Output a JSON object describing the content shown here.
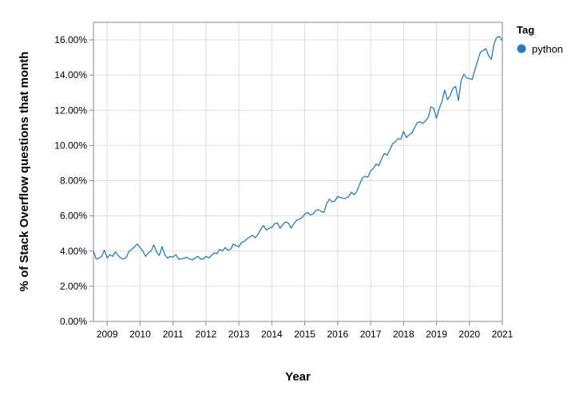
{
  "chart_data": {
    "type": "line",
    "xlabel": "Year",
    "ylabel": "% of Stack Overflow questions that month",
    "xlim": [
      "2008-08",
      "2021-01"
    ],
    "ylim": [
      0,
      17
    ],
    "x_ticks": [
      "2009",
      "2010",
      "2011",
      "2012",
      "2013",
      "2014",
      "2015",
      "2016",
      "2017",
      "2018",
      "2019",
      "2020",
      "2021"
    ],
    "y_ticks": [
      0,
      2,
      4,
      6,
      8,
      10,
      12,
      14,
      16
    ],
    "y_tick_labels": [
      "0.00%",
      "2.00%",
      "4.00%",
      "6.00%",
      "8.00%",
      "10.00%",
      "12.00%",
      "14.00%",
      "16.00%"
    ],
    "grid": true,
    "legend": {
      "title": "Tag",
      "placement": "top-right"
    },
    "colors": {
      "python": "#2c7bb6",
      "grid": "#dddddd",
      "axis": "#888888"
    },
    "series": [
      {
        "name": "python",
        "x": [
          "2008-08",
          "2008-09",
          "2008-10",
          "2008-11",
          "2008-12",
          "2009-01",
          "2009-02",
          "2009-03",
          "2009-04",
          "2009-05",
          "2009-06",
          "2009-07",
          "2009-08",
          "2009-09",
          "2009-10",
          "2009-11",
          "2009-12",
          "2010-01",
          "2010-02",
          "2010-03",
          "2010-04",
          "2010-05",
          "2010-06",
          "2010-07",
          "2010-08",
          "2010-09",
          "2010-10",
          "2010-11",
          "2010-12",
          "2011-01",
          "2011-02",
          "2011-03",
          "2011-04",
          "2011-05",
          "2011-06",
          "2011-07",
          "2011-08",
          "2011-09",
          "2011-10",
          "2011-11",
          "2011-12",
          "2012-01",
          "2012-02",
          "2012-03",
          "2012-04",
          "2012-05",
          "2012-06",
          "2012-07",
          "2012-08",
          "2012-09",
          "2012-10",
          "2012-11",
          "2012-12",
          "2013-01",
          "2013-02",
          "2013-03",
          "2013-04",
          "2013-05",
          "2013-06",
          "2013-07",
          "2013-08",
          "2013-09",
          "2013-10",
          "2013-11",
          "2013-12",
          "2014-01",
          "2014-02",
          "2014-03",
          "2014-04",
          "2014-05",
          "2014-06",
          "2014-07",
          "2014-08",
          "2014-09",
          "2014-10",
          "2014-11",
          "2014-12",
          "2015-01",
          "2015-02",
          "2015-03",
          "2015-04",
          "2015-05",
          "2015-06",
          "2015-07",
          "2015-08",
          "2015-09",
          "2015-10",
          "2015-11",
          "2015-12",
          "2016-01",
          "2016-02",
          "2016-03",
          "2016-04",
          "2016-05",
          "2016-06",
          "2016-07",
          "2016-08",
          "2016-09",
          "2016-10",
          "2016-11",
          "2016-12",
          "2017-01",
          "2017-02",
          "2017-03",
          "2017-04",
          "2017-05",
          "2017-06",
          "2017-07",
          "2017-08",
          "2017-09",
          "2017-10",
          "2017-11",
          "2017-12",
          "2018-01",
          "2018-02",
          "2018-03",
          "2018-04",
          "2018-05",
          "2018-06",
          "2018-07",
          "2018-08",
          "2018-09",
          "2018-10",
          "2018-11",
          "2018-12",
          "2019-01",
          "2019-02",
          "2019-03",
          "2019-04",
          "2019-05",
          "2019-06",
          "2019-07",
          "2019-08",
          "2019-09",
          "2019-10",
          "2019-11",
          "2019-12",
          "2020-01",
          "2020-02",
          "2020-03",
          "2020-04",
          "2020-05",
          "2020-06",
          "2020-07",
          "2020-08",
          "2020-09",
          "2020-10",
          "2020-11",
          "2020-12",
          "2021-01"
        ],
        "values": [
          4.0,
          3.55,
          3.6,
          3.7,
          4.05,
          3.6,
          3.8,
          3.7,
          3.95,
          3.75,
          3.6,
          3.55,
          3.65,
          4.0,
          4.1,
          4.25,
          4.4,
          4.2,
          4.0,
          3.7,
          3.9,
          4.0,
          4.35,
          3.95,
          3.75,
          4.25,
          3.8,
          3.6,
          3.7,
          3.65,
          3.8,
          3.55,
          3.55,
          3.6,
          3.65,
          3.55,
          3.5,
          3.6,
          3.7,
          3.55,
          3.55,
          3.7,
          3.6,
          3.75,
          3.9,
          3.85,
          4.1,
          4.0,
          4.2,
          4.05,
          4.1,
          4.4,
          4.3,
          4.25,
          4.5,
          4.55,
          4.7,
          4.8,
          4.9,
          4.75,
          4.95,
          5.25,
          5.45,
          5.2,
          5.3,
          5.35,
          5.55,
          5.6,
          5.3,
          5.5,
          5.65,
          5.6,
          5.3,
          5.55,
          5.75,
          5.8,
          5.9,
          6.1,
          6.2,
          6.05,
          6.1,
          6.3,
          6.35,
          6.25,
          6.2,
          6.7,
          6.95,
          6.8,
          6.85,
          7.1,
          7.05,
          7.0,
          7.0,
          7.1,
          7.35,
          7.2,
          7.4,
          7.8,
          8.15,
          8.25,
          8.2,
          8.55,
          8.7,
          8.95,
          8.85,
          9.25,
          9.55,
          9.45,
          9.75,
          10.1,
          10.2,
          10.4,
          10.35,
          10.8,
          10.45,
          10.6,
          10.7,
          11.0,
          11.3,
          11.35,
          11.25,
          11.4,
          11.6,
          12.2,
          12.1,
          11.55,
          12.1,
          12.5,
          13.15,
          12.6,
          12.85,
          13.25,
          13.35,
          12.55,
          13.7,
          14.05,
          13.85,
          13.8,
          13.75,
          14.3,
          14.8,
          15.3,
          15.4,
          15.5,
          15.1,
          14.9,
          15.8,
          16.15,
          16.2,
          15.95
        ]
      }
    ]
  }
}
